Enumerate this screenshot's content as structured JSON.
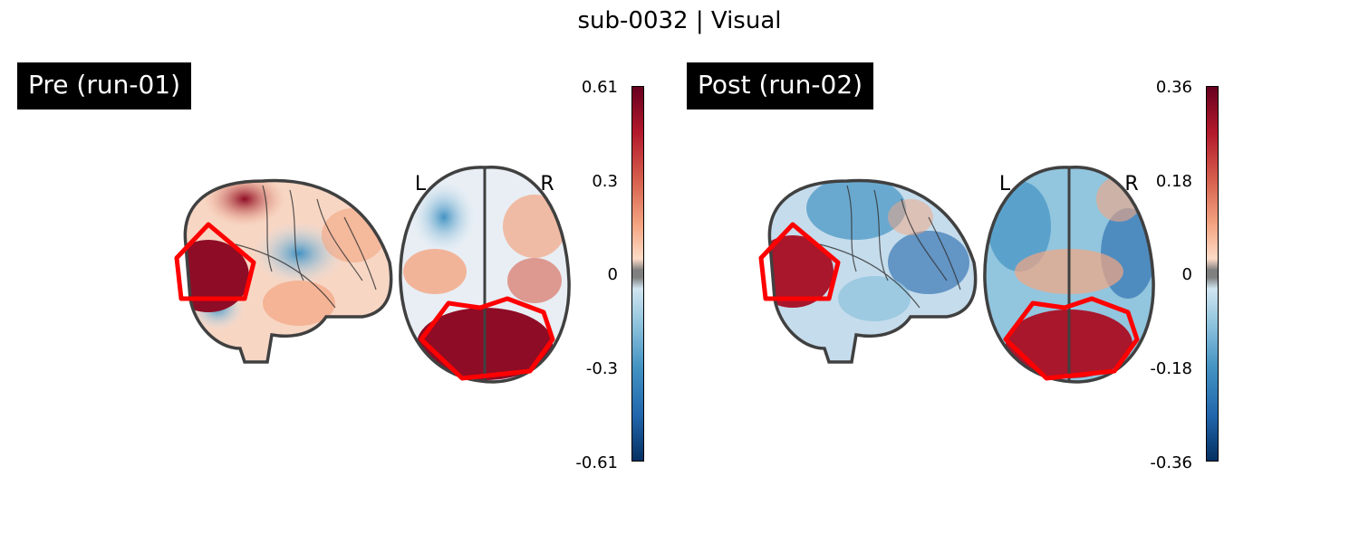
{
  "figure": {
    "title": "sub-0032 | Visual"
  },
  "panels": [
    {
      "label": "Pre (run-01)",
      "orientation_left": "L",
      "orientation_right": "R",
      "colorbar_ticks": [
        "0.61",
        "0.3",
        "0",
        "-0.3",
        "-0.61"
      ]
    },
    {
      "label": "Post (run-02)",
      "orientation_left": "L",
      "orientation_right": "R",
      "colorbar_ticks": [
        "0.36",
        "0.18",
        "0",
        "-0.18",
        "-0.36"
      ]
    }
  ],
  "colors": {
    "positive": "#67001f",
    "negative": "#053061",
    "roi_outline": "#ff0000",
    "brain_outline": "#404040",
    "zero_band": "#808080"
  }
}
